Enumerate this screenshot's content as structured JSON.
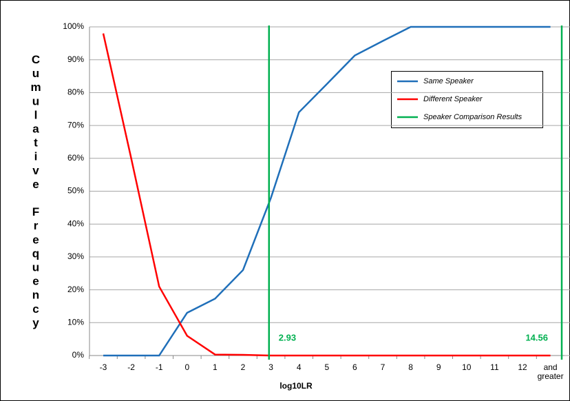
{
  "chart_data": {
    "type": "line",
    "x_label": "log10LR",
    "y_label": "Cumulative Frequency",
    "categories": [
      "-3",
      "-2",
      "-1",
      "0",
      "1",
      "2",
      "3",
      "4",
      "5",
      "6",
      "7",
      "8",
      "9",
      "10",
      "11",
      "12",
      "and greater"
    ],
    "series": [
      {
        "name": "Same Speaker",
        "color": "#1f6fb9",
        "values": [
          0,
          0,
          0,
          13,
          17.3,
          26,
          48,
          74,
          82.6,
          91.3,
          95.7,
          100,
          100,
          100,
          100,
          100,
          100
        ]
      },
      {
        "name": "Different Speaker",
        "color": "#ff0000",
        "values": [
          98,
          60,
          21,
          6,
          0.3,
          0.2,
          0,
          0,
          0,
          0,
          0,
          0,
          0,
          0,
          0,
          0,
          0
        ]
      }
    ],
    "markers": {
      "name": "Speaker Comparison Results",
      "color": "#00b050",
      "values": [
        2.93,
        14.56
      ]
    },
    "ylim": [
      0,
      100
    ],
    "yticks": [
      {
        "value": 0,
        "label": "0%"
      },
      {
        "value": 10,
        "label": "10%"
      },
      {
        "value": 20,
        "label": "20%"
      },
      {
        "value": 30,
        "label": "30%"
      },
      {
        "value": 40,
        "label": "40%"
      },
      {
        "value": 50,
        "label": "50%"
      },
      {
        "value": 60,
        "label": "60%"
      },
      {
        "value": 70,
        "label": "70%"
      },
      {
        "value": 80,
        "label": "80%"
      },
      {
        "value": 90,
        "label": "90%"
      },
      {
        "value": 100,
        "label": "100%"
      }
    ],
    "grid": true
  }
}
